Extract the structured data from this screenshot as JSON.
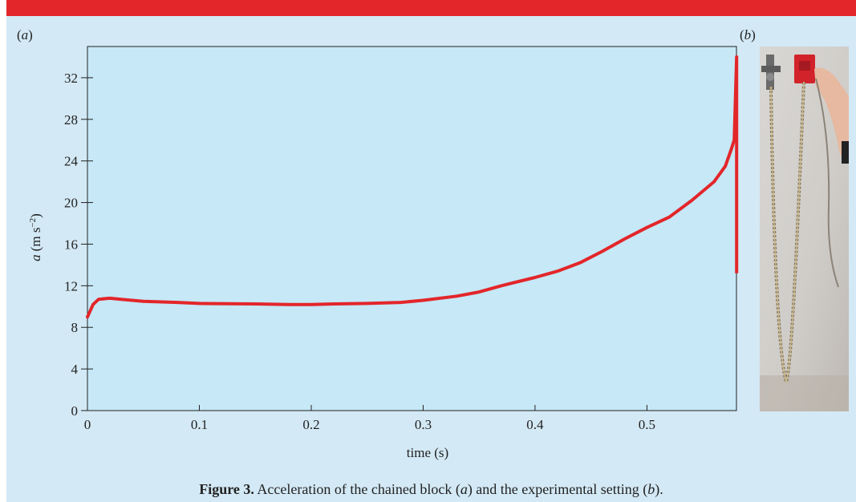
{
  "panel_labels": {
    "a": "a",
    "b": "b"
  },
  "caption": {
    "prefix": "Figure 3.",
    "text_1": " Acceleration of the chained block (",
    "a": "a",
    "text_2": ") and the experimental setting (",
    "b": "b",
    "text_3": ")."
  },
  "chart_data": {
    "type": "line",
    "title": "",
    "xlabel": "time (s)",
    "ylabel_var": "a",
    "ylabel_units": "(m s",
    "ylabel_exp": "−2",
    "ylabel_close": ")",
    "xlim": [
      0,
      0.58
    ],
    "ylim": [
      0,
      35
    ],
    "xticks": [
      0,
      0.1,
      0.2,
      0.3,
      0.4,
      0.5
    ],
    "xtick_labels": [
      "0",
      "0.1",
      "0.2",
      "0.3",
      "0.4",
      "0.5"
    ],
    "yticks": [
      0,
      4,
      8,
      12,
      16,
      20,
      24,
      28,
      32
    ],
    "ytick_labels": [
      "0",
      "4",
      "8",
      "12",
      "16",
      "20",
      "24",
      "28",
      "32"
    ],
    "grid": false,
    "line_color": "#e3262a",
    "plot_bg": "#c6e8f7",
    "series": [
      {
        "x": [
          0,
          0.005,
          0.01,
          0.02,
          0.03,
          0.05,
          0.08,
          0.1,
          0.15,
          0.18,
          0.2,
          0.22,
          0.25,
          0.28,
          0.3,
          0.33,
          0.35,
          0.37,
          0.4,
          0.42,
          0.44,
          0.46,
          0.48,
          0.5,
          0.52,
          0.54,
          0.56,
          0.57,
          0.575,
          0.578
        ],
        "y": [
          9.0,
          10.2,
          10.7,
          10.8,
          10.7,
          10.5,
          10.4,
          10.3,
          10.25,
          10.2,
          10.2,
          10.25,
          10.3,
          10.4,
          10.6,
          11.0,
          11.4,
          12.0,
          12.8,
          13.4,
          14.2,
          15.3,
          16.5,
          17.6,
          18.6,
          20.2,
          22.0,
          23.5,
          25.0,
          26.0
        ]
      }
    ]
  }
}
